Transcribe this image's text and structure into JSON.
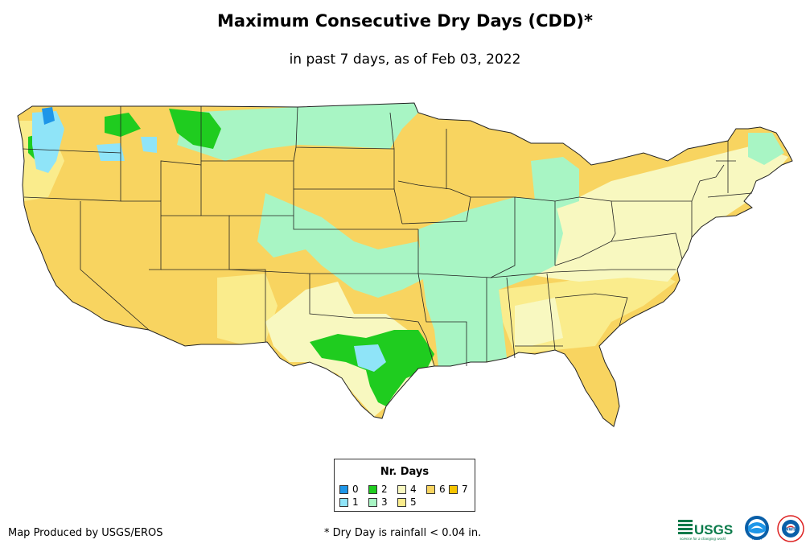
{
  "header": {
    "title": "Maximum Consecutive Dry Days (CDD)*",
    "subtitle": "in past 7 days, as of Feb 03, 2022"
  },
  "legend": {
    "title": "Nr. Days",
    "items": [
      {
        "label": "0",
        "color": "#1e96e8"
      },
      {
        "label": "1",
        "color": "#8fe4f8"
      },
      {
        "label": "2",
        "color": "#1fcc1f"
      },
      {
        "label": "3",
        "color": "#a8f5c4"
      },
      {
        "label": "4",
        "color": "#f8f8c0"
      },
      {
        "label": "5",
        "color": "#faec8c"
      },
      {
        "label": "6",
        "color": "#f8d460"
      },
      {
        "label": "7",
        "color": "#f5c400"
      }
    ]
  },
  "footer": {
    "credit": "Map Produced by USGS/EROS",
    "footnote": "* Dry Day is rainfall < 0.04 in.",
    "logo_usgs": "USGS",
    "logo_usgs_tagline": "science for a changing world",
    "logo_noaa": "NOAA",
    "logo_nws": "NWS"
  },
  "map": {
    "subject": "Contiguous United States",
    "state_boundaries": true
  }
}
